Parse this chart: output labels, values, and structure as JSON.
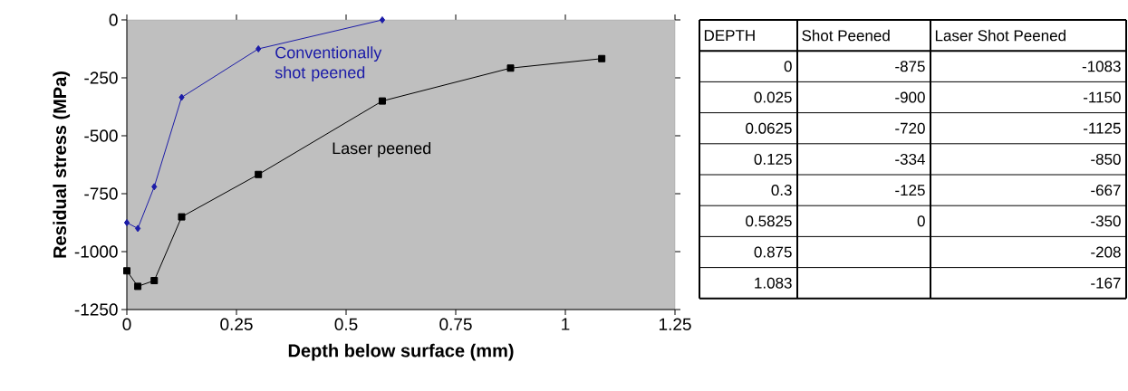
{
  "chart_data": [
    {
      "type": "line",
      "xlabel": "Depth below surface (mm)",
      "ylabel": "Residual stress (MPa)",
      "xlim": [
        0,
        1.25
      ],
      "ylim": [
        -1250,
        0
      ],
      "xticks": [
        0,
        0.25,
        0.5,
        0.75,
        1,
        1.25
      ],
      "yticks": [
        -1250,
        -1000,
        -750,
        -500,
        -250,
        0
      ],
      "series": [
        {
          "name": "Conventionally shot peened",
          "color": "#1c1ca8",
          "marker": "diamond",
          "x": [
            0,
            0.025,
            0.0625,
            0.125,
            0.3,
            0.5825
          ],
          "values": [
            -875,
            -900,
            -720,
            -334,
            -125,
            0
          ]
        },
        {
          "name": "Laser peened",
          "color": "#000000",
          "marker": "square",
          "x": [
            0,
            0.025,
            0.0625,
            0.125,
            0.3,
            0.5825,
            0.875,
            1.083
          ],
          "values": [
            -1083,
            -1150,
            -1125,
            -850,
            -667,
            -350,
            -208,
            -167
          ]
        }
      ]
    },
    {
      "type": "other",
      "categories": [
        "DEPTH",
        "Shot Peened",
        "Laser Shot Peened"
      ],
      "cell_labels": [
        [
          "0",
          "-875",
          "-1083"
        ],
        [
          "0.025",
          "-900",
          "-1150"
        ],
        [
          "0.0625",
          "-720",
          "-1125"
        ],
        [
          "0.125",
          "-334",
          "-850"
        ],
        [
          "0.3",
          "-125",
          "-667"
        ],
        [
          "0.5825",
          "0",
          "-350"
        ],
        [
          "0.875",
          null,
          "-208"
        ],
        [
          "1.083",
          null,
          "-167"
        ]
      ]
    }
  ]
}
